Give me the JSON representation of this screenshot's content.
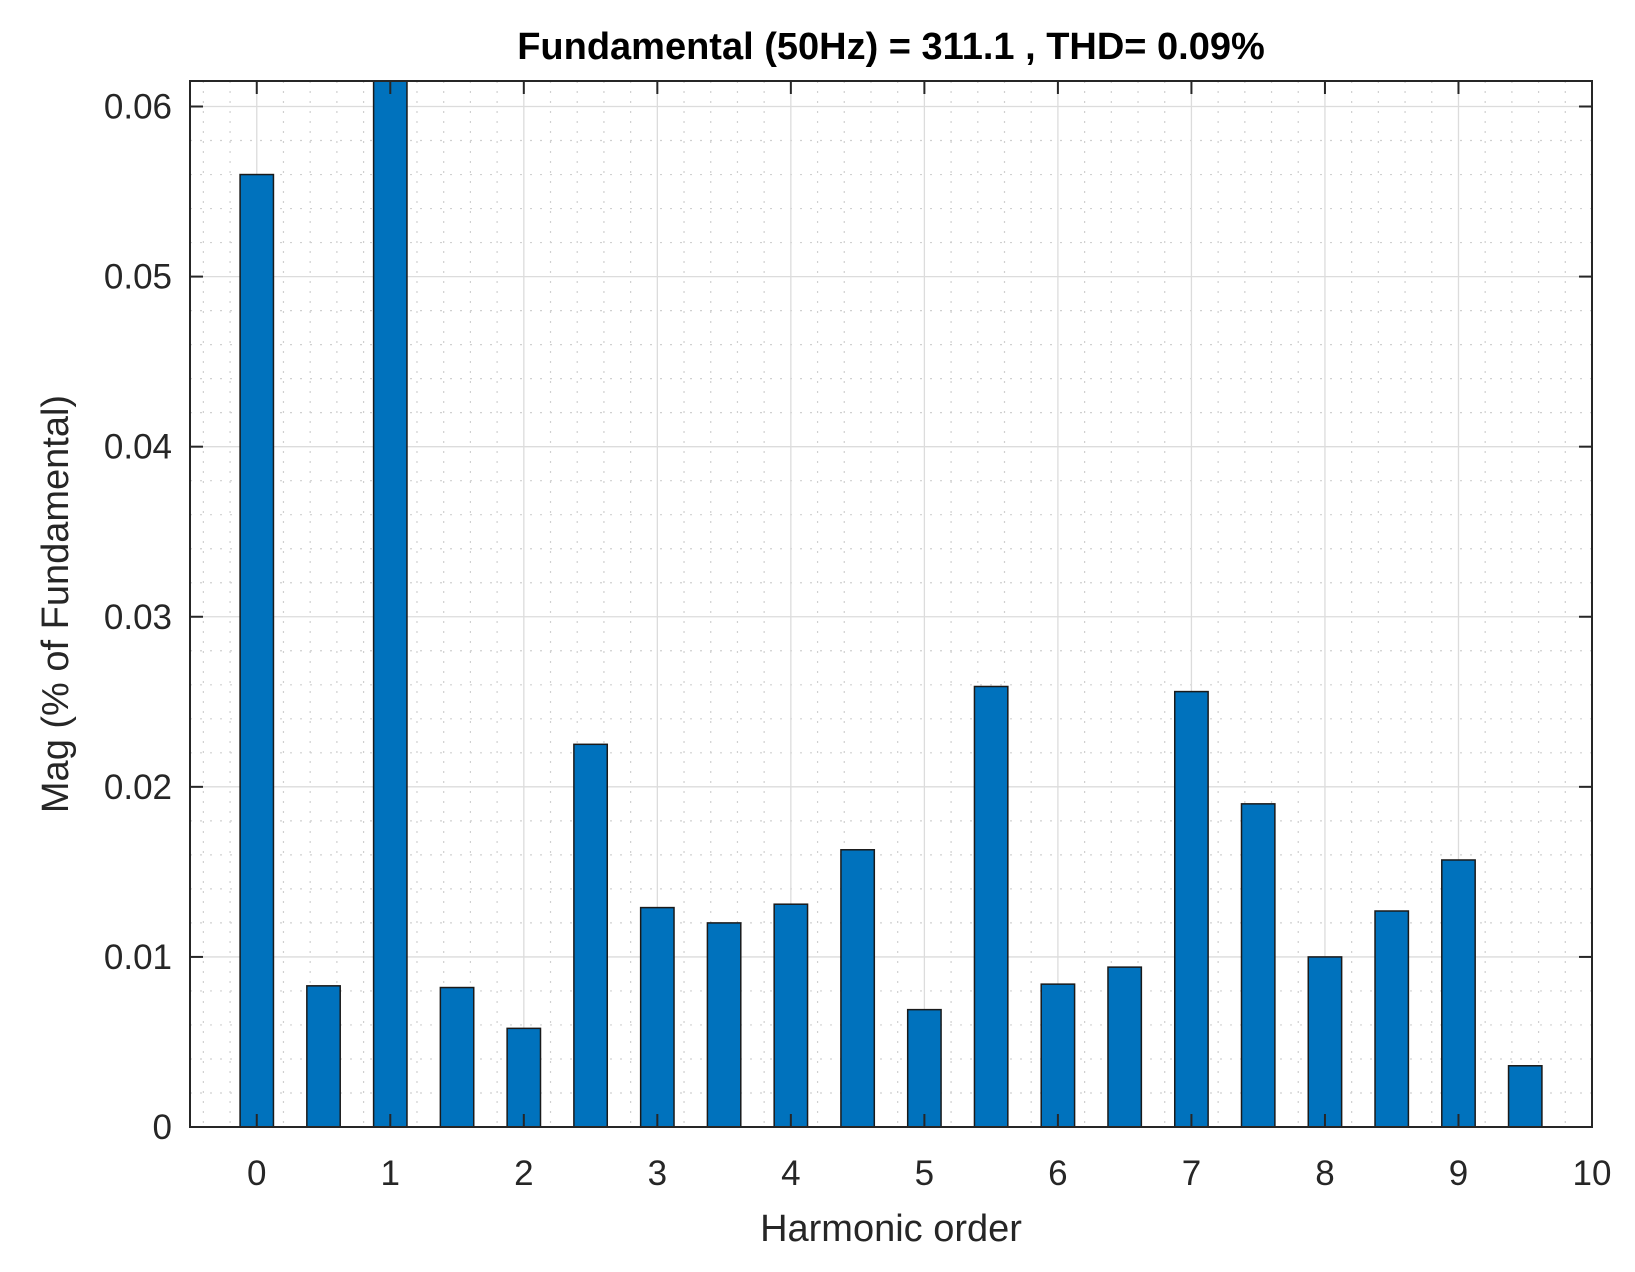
{
  "chart_data": {
    "type": "bar",
    "title": "Fundamental (50Hz) = 311.1 , THD= 0.09%",
    "xlabel": "Harmonic order",
    "ylabel": "Mag (% of Fundamental)",
    "x": [
      0,
      0.5,
      1,
      1.5,
      2,
      2.5,
      3,
      3.5,
      4,
      4.5,
      5,
      5.5,
      6,
      6.5,
      7,
      7.5,
      8,
      8.5,
      9,
      9.5
    ],
    "values": [
      0.056,
      0.0083,
      0.0615,
      0.0082,
      0.0058,
      0.0225,
      0.0129,
      0.012,
      0.0131,
      0.0163,
      0.0069,
      0.0259,
      0.0084,
      0.0094,
      0.0256,
      0.019,
      0.01,
      0.0127,
      0.0157,
      0.0036
    ],
    "xlim": [
      -0.5,
      10
    ],
    "ylim": [
      0,
      0.0615
    ],
    "xticks": [
      "0",
      "1",
      "2",
      "3",
      "4",
      "5",
      "6",
      "7",
      "8",
      "9",
      "10"
    ],
    "yticks": [
      "0",
      "0.01",
      "0.02",
      "0.03",
      "0.04",
      "0.05",
      "0.06"
    ],
    "grid": true,
    "minor_grid": true,
    "bar_color": "#0072BD"
  }
}
